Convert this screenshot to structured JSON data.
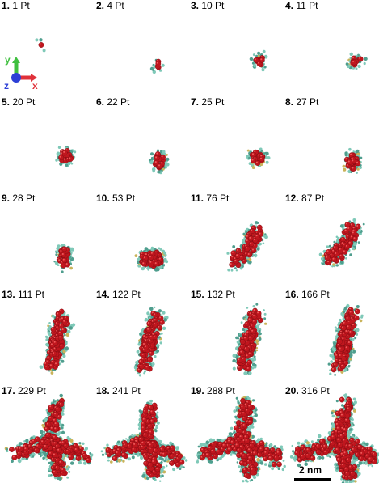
{
  "panels": [
    {
      "num": "1.",
      "label": "1 Pt",
      "atoms": 1
    },
    {
      "num": "2.",
      "label": "4 Pt",
      "atoms": 4
    },
    {
      "num": "3.",
      "label": "10 Pt",
      "atoms": 10
    },
    {
      "num": "4.",
      "label": "11 Pt",
      "atoms": 11
    },
    {
      "num": "5.",
      "label": "20 Pt",
      "atoms": 20
    },
    {
      "num": "6.",
      "label": "22 Pt",
      "atoms": 22
    },
    {
      "num": "7.",
      "label": "25 Pt",
      "atoms": 25
    },
    {
      "num": "8.",
      "label": "27 Pt",
      "atoms": 27
    },
    {
      "num": "9.",
      "label": "28 Pt",
      "atoms": 28
    },
    {
      "num": "10.",
      "label": "53 Pt",
      "atoms": 53
    },
    {
      "num": "11.",
      "label": "76 Pt",
      "atoms": 76
    },
    {
      "num": "12.",
      "label": "87 Pt",
      "atoms": 87
    },
    {
      "num": "13.",
      "label": "111 Pt",
      "atoms": 111
    },
    {
      "num": "14.",
      "label": "122 Pt",
      "atoms": 122
    },
    {
      "num": "15.",
      "label": "132 Pt",
      "atoms": 132
    },
    {
      "num": "16.",
      "label": "166 Pt",
      "atoms": 166
    },
    {
      "num": "17.",
      "label": "229 Pt",
      "atoms": 229
    },
    {
      "num": "18.",
      "label": "241 Pt",
      "atoms": 241
    },
    {
      "num": "19.",
      "label": "288 Pt",
      "atoms": 288
    },
    {
      "num": "20.",
      "label": "316 Pt",
      "atoms": 316
    }
  ],
  "axes": {
    "x_label": "x",
    "y_label": "y",
    "z_label": "z",
    "x_color": "#e0313a",
    "y_color": "#3fbf3f",
    "z_color": "#2c3fd6"
  },
  "scale_bar": {
    "label": "2 nm"
  },
  "colors": {
    "pt_atom": "#c0161e",
    "pt_atom_highlight": "#ef5b5b",
    "ligand": "#7fc9b8",
    "ligand_dark": "#4f9e8e",
    "ligand_accent": "#c9b35a"
  }
}
